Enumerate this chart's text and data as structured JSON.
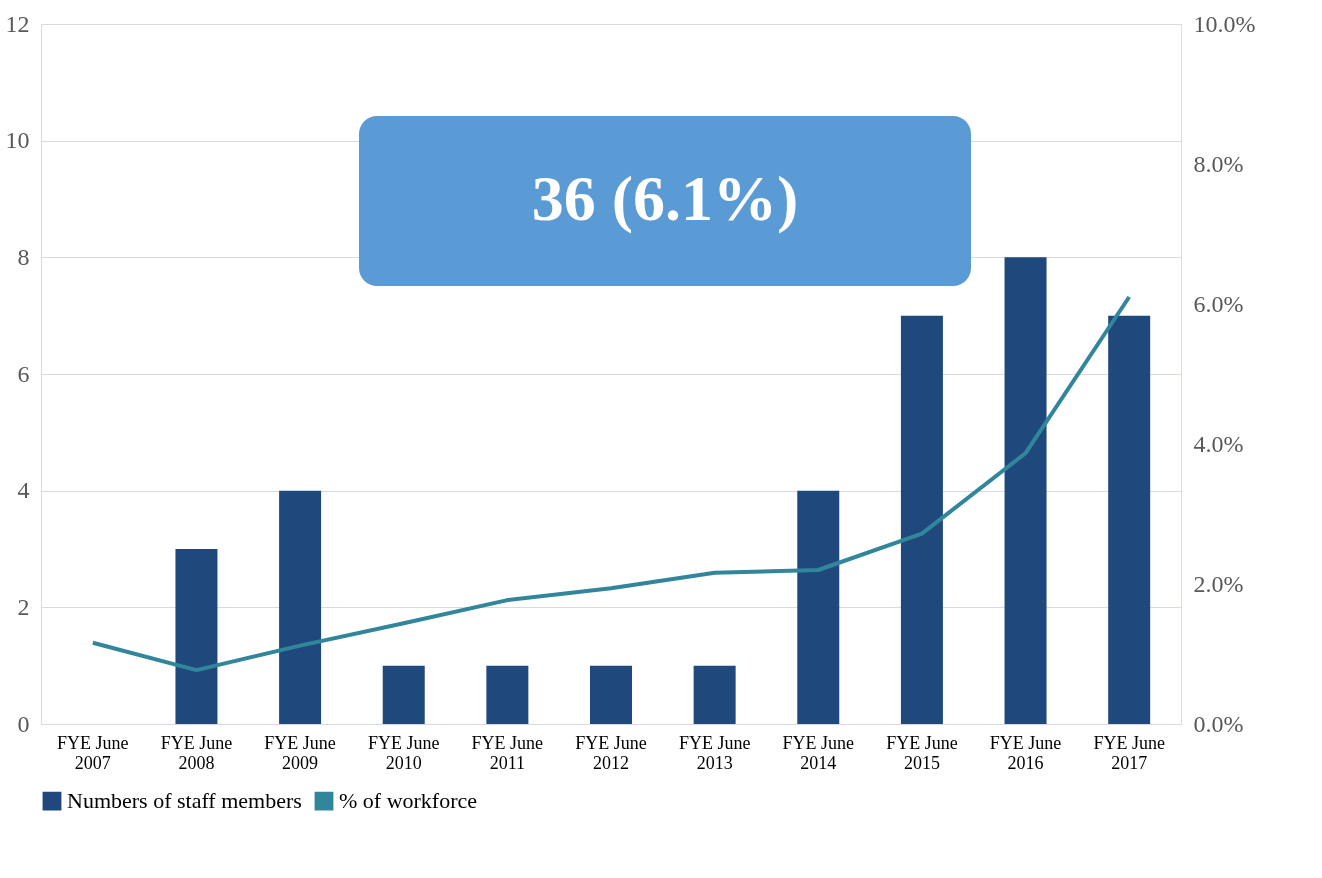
{
  "chart_data": {
    "type": "bar",
    "categories": [
      "FYE June 2007",
      "FYE June 2008",
      "FYE June 2009",
      "FYE June 2010",
      "FYE June 2011",
      "FYE June 2012",
      "FYE June 2013",
      "FYE June 2014",
      "FYE June 2015",
      "FYE June 2016",
      "FYE June 2017"
    ],
    "series": [
      {
        "name": "Numbers of staff members",
        "color": "#1f497d",
        "values": [
          0,
          3,
          4,
          1,
          1,
          1,
          1,
          4,
          7,
          8,
          7
        ]
      },
      {
        "name": "% of workforce",
        "type": "line",
        "axis": "y2",
        "color": "#31869b",
        "values": [
          1.16,
          0.77,
          1.12,
          1.44,
          1.77,
          1.94,
          2.16,
          2.2,
          2.72,
          3.87,
          6.1
        ]
      }
    ],
    "ylim": [
      0,
      12
    ],
    "yticks": [
      0,
      2,
      4,
      6,
      8,
      10,
      12
    ],
    "y2lim": [
      0,
      10
    ],
    "y2ticks": [
      {
        "value": 0,
        "label": "0.0%"
      },
      {
        "value": 2,
        "label": "2.0%"
      },
      {
        "value": 4,
        "label": "4.0%"
      },
      {
        "value": 6,
        "label": "6.0%"
      },
      {
        "value": 8,
        "label": "8.0%"
      },
      {
        "value": 10,
        "label": "10.0%"
      }
    ],
    "grid": "y",
    "legend": "bottom",
    "marker": "none",
    "line_style": "solid",
    "annotations": [
      "36 (6.1%)"
    ]
  }
}
